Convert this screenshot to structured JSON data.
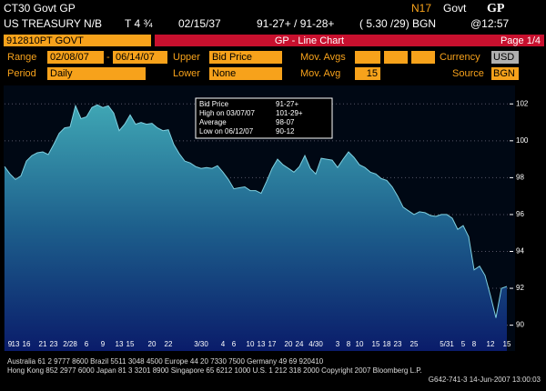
{
  "header": {
    "security": "CT30 Govt GP",
    "right_code": "N17",
    "right_sector": "Govt",
    "right_func": "GP",
    "name": "US TREASURY N/B",
    "coupon": "T 4 ¾",
    "maturity": "02/15/37",
    "quote": "91-27+ / 91-28+",
    "yield": "( 5.30 /29) BGN",
    "time": "@12:57"
  },
  "toolbar": {
    "ticker": "912810PT GOVT",
    "title": "GP - Line Chart",
    "page": "Page 1/4"
  },
  "fields": {
    "range_label": "Range",
    "range_from": "02/08/07",
    "range_sep": "-",
    "range_to": "06/14/07",
    "upper_label": "Upper",
    "upper": "Bid Price",
    "movavgs_label": "Mov. Avgs",
    "currency_label": "Currency",
    "currency": "USD",
    "period_label": "Period",
    "period": "Daily",
    "lower_label": "Lower",
    "lower": "None",
    "movavg_label": "Mov. Avg",
    "movavg": "15",
    "source_label": "Source",
    "source": "BGN"
  },
  "chart_data": {
    "type": "area",
    "color": "#7fd0e0",
    "annotations": [
      [
        "Bid Price",
        "91-27+"
      ],
      [
        "High on 03/07/07",
        "101-29+"
      ],
      [
        "Average",
        "98-07"
      ],
      [
        "Low on 06/12/07",
        "90-12"
      ]
    ],
    "categories": [
      null,
      "9",
      "13",
      null,
      "16",
      null,
      null,
      "21",
      null,
      "23",
      null,
      null,
      "2/28",
      null,
      null,
      "6",
      null,
      null,
      "9",
      null,
      null,
      "13",
      null,
      "15",
      null,
      null,
      null,
      "20",
      null,
      null,
      "22",
      null,
      null,
      null,
      null,
      null,
      "3/30",
      null,
      null,
      null,
      "4",
      null,
      "6",
      null,
      null,
      "10",
      null,
      "13",
      null,
      "17",
      null,
      null,
      "20",
      null,
      "24",
      null,
      null,
      "4/30",
      null,
      null,
      null,
      "3",
      null,
      "8",
      null,
      "10",
      null,
      null,
      "15",
      null,
      "18",
      null,
      "23",
      null,
      null,
      "25",
      null,
      null,
      null,
      null,
      null,
      "5/31",
      null,
      null,
      "5",
      null,
      "8",
      null,
      null,
      "12",
      null,
      null,
      "15"
    ],
    "values": [
      98.6,
      98.2,
      97.9,
      98.1,
      98.9,
      99.2,
      99.35,
      99.4,
      99.25,
      99.8,
      100.4,
      100.7,
      100.75,
      101.9,
      101.2,
      101.3,
      101.8,
      101.95,
      101.8,
      101.9,
      101.5,
      100.55,
      100.9,
      101.4,
      100.9,
      101.0,
      100.9,
      100.95,
      100.7,
      100.55,
      100.6,
      99.8,
      99.3,
      98.9,
      98.8,
      98.6,
      98.5,
      98.55,
      98.5,
      98.65,
      98.3,
      97.9,
      97.4,
      97.45,
      97.5,
      97.3,
      97.3,
      97.15,
      97.8,
      98.5,
      99.0,
      98.7,
      98.5,
      98.3,
      98.6,
      99.2,
      98.5,
      98.2,
      99.05,
      99.0,
      98.95,
      98.55,
      99.0,
      99.4,
      99.1,
      98.7,
      98.55,
      98.3,
      98.2,
      97.95,
      97.85,
      97.5,
      97.0,
      96.4,
      96.2,
      96.0,
      96.15,
      96.1,
      95.95,
      95.9,
      96.0,
      96.0,
      95.8,
      95.2,
      95.4,
      94.8,
      93.0,
      93.2,
      92.7,
      91.6,
      90.4,
      92.0,
      92.1
    ],
    "ylim": [
      88.6,
      103.0
    ],
    "yticks": [
      90,
      92,
      94,
      96,
      98,
      100,
      102
    ],
    "grid": true
  },
  "footer": [
    "Australia 61 2 9777 8600        Brazil 5511 3048 4500        Europe 44 20 7330 7500        Germany 49 69 920410",
    "Hong Kong 852 2977 6000 Japan 81 3 3201 8900 Singapore 65 6212 1000 U.S. 1 212 318 2000 Copyright 2007 Bloomberg L.P.",
    "G642-741-3 14-Jun-2007 13:00:03"
  ]
}
